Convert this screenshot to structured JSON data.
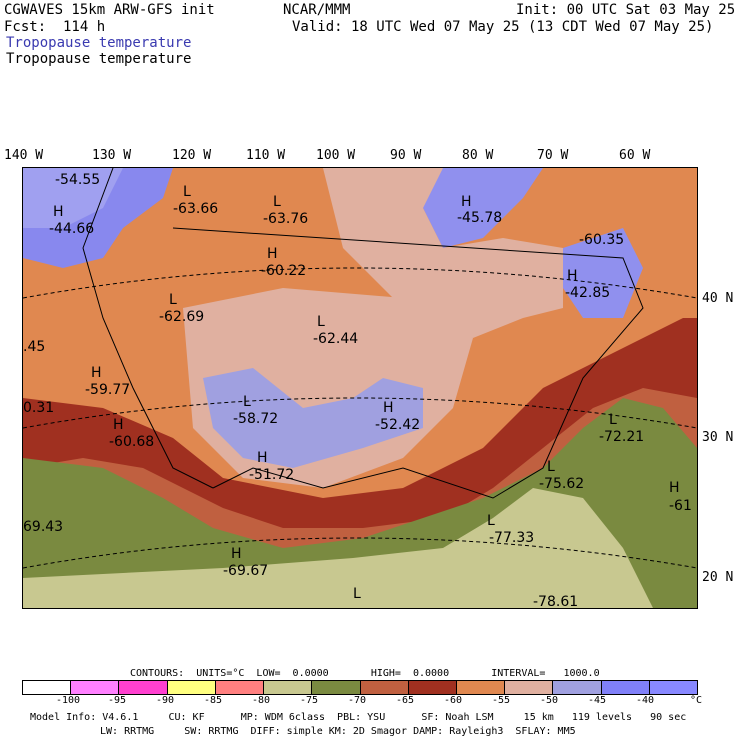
{
  "header": {
    "line1_left": "CGWAVES 15km ARW-GFS init",
    "line1_center": "NCAR/MMM",
    "line1_right": "Init: 00 UTC Sat 03 May 25",
    "line2_left": "Fcst:  114 h",
    "line2_right": "Valid: 18 UTC Wed 07 May 25 (13 CDT Wed 07 May 25)",
    "line3": "Tropopause temperature",
    "line4": "Tropopause temperature"
  },
  "axes": {
    "lon": [
      "140 W",
      "130 W",
      "120 W",
      "110 W",
      "100 W",
      "90 W",
      "80 W",
      "70 W",
      "60 W"
    ],
    "lat": [
      "40 N",
      "30 N",
      "20 N"
    ]
  },
  "labels": [
    {
      "t": "-54.55"
    },
    {
      "t": "H"
    },
    {
      "t": "-44.66"
    },
    {
      "t": "L"
    },
    {
      "t": "-63.66"
    },
    {
      "t": "L"
    },
    {
      "t": "-63.76"
    },
    {
      "t": "H"
    },
    {
      "t": "-45.78"
    },
    {
      "t": "-60.35"
    },
    {
      "t": "H"
    },
    {
      "t": "-42.85"
    },
    {
      "t": "H"
    },
    {
      "t": "-60.22"
    },
    {
      "t": "L"
    },
    {
      "t": "-62.69"
    },
    {
      "t": "L"
    },
    {
      "t": "-62.44"
    },
    {
      "t": ".45"
    },
    {
      "t": "H"
    },
    {
      "t": "-59.77"
    },
    {
      "t": "0.31"
    },
    {
      "t": "H"
    },
    {
      "t": "-60.68"
    },
    {
      "t": "L"
    },
    {
      "t": "-58.72"
    },
    {
      "t": "H"
    },
    {
      "t": "-52.42"
    },
    {
      "t": "L"
    },
    {
      "t": "-72.21"
    },
    {
      "t": "H"
    },
    {
      "t": "-51.72"
    },
    {
      "t": "L"
    },
    {
      "t": "-75.62"
    },
    {
      "t": "H"
    },
    {
      "t": "-61"
    },
    {
      "t": "69.43"
    },
    {
      "t": "L"
    },
    {
      "t": "-77.33"
    },
    {
      "t": "H"
    },
    {
      "t": "-69.67"
    },
    {
      "t": "L"
    },
    {
      "t": "-78.61"
    }
  ],
  "contours_line": "CONTOURS:  UNITS=°C  LOW=  0.0000       HIGH=  0.0000       INTERVAL=   1000.0",
  "legend": {
    "colors": [
      "#ffffff",
      "#ff80ff",
      "#ff40d0",
      "#ffff80",
      "#ff8080",
      "#c8c890",
      "#7a8a40",
      "#c06040",
      "#a03020",
      "#e08850",
      "#e0b0a0",
      "#a0a0e0",
      "#8080f8",
      "#8888ff"
    ],
    "ticks": [
      "-100",
      "-95",
      "-90",
      "-85",
      "-80",
      "-75",
      "-70",
      "-65",
      "-60",
      "-55",
      "-50",
      "-45",
      "-40",
      "°C"
    ]
  },
  "footer": {
    "line1": "Model Info: V4.6.1     CU: KF      MP: WDM 6class  PBL: YSU      SF: Noah LSM     15 km   119 levels   90 sec",
    "line2": "LW: RRTMG     SW: RRTMG  DIFF: simple KM: 2D Smagor DAMP: Rayleigh3  SFLAY: MM5"
  }
}
